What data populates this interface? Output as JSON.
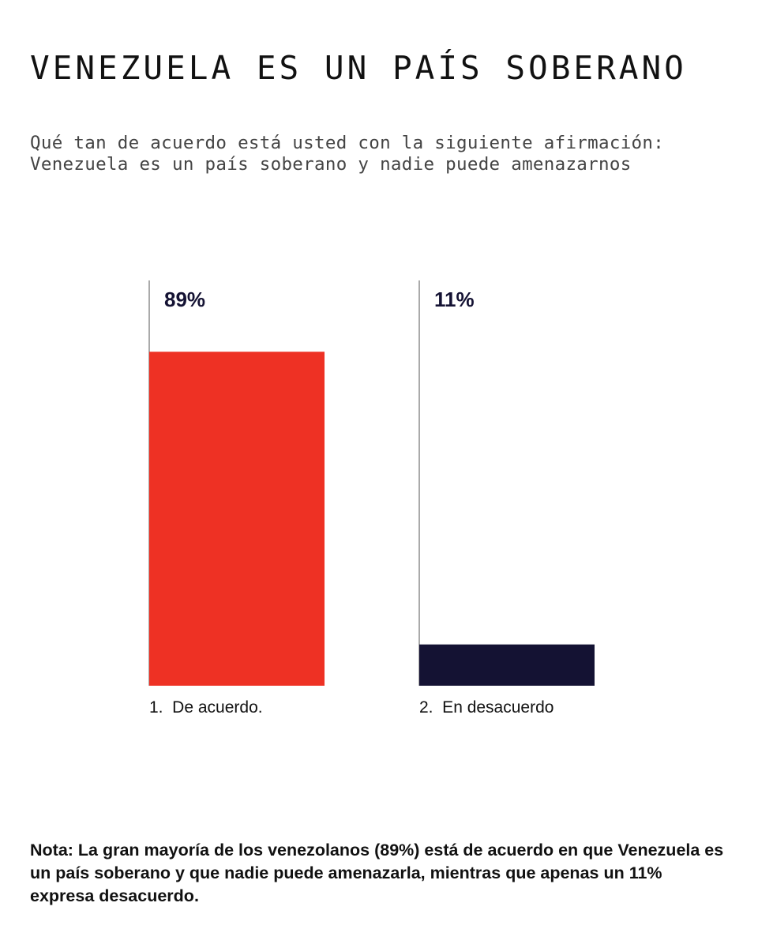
{
  "header": {
    "title": "VENEZUELA ES UN PAÍS SOBERANO",
    "subtitle_line1": "Qué tan de acuerdo está usted con la siguiente afirmación:",
    "subtitle_line2": "Venezuela es un país soberano y nadie puede amenazarnos"
  },
  "chart_data": {
    "type": "bar",
    "categories": [
      "1.  De acuerdo.",
      "2.  En desacuerdo"
    ],
    "values": [
      89,
      11
    ],
    "value_labels": [
      "89%",
      "11%"
    ],
    "colors": [
      "#EE3124",
      "#141233"
    ],
    "ylim": [
      0,
      100
    ],
    "title": "VENEZUELA ES UN PAÍS SOBERANO",
    "xlabel": "",
    "ylabel": "",
    "grid": false,
    "legend": "none"
  },
  "note": "Nota: La gran mayoría de los venezolanos (89%) está de acuerdo en que Venezuela es un país soberano y que nadie puede amenazarla, mientras que apenas un 11% expresa desacuerdo."
}
